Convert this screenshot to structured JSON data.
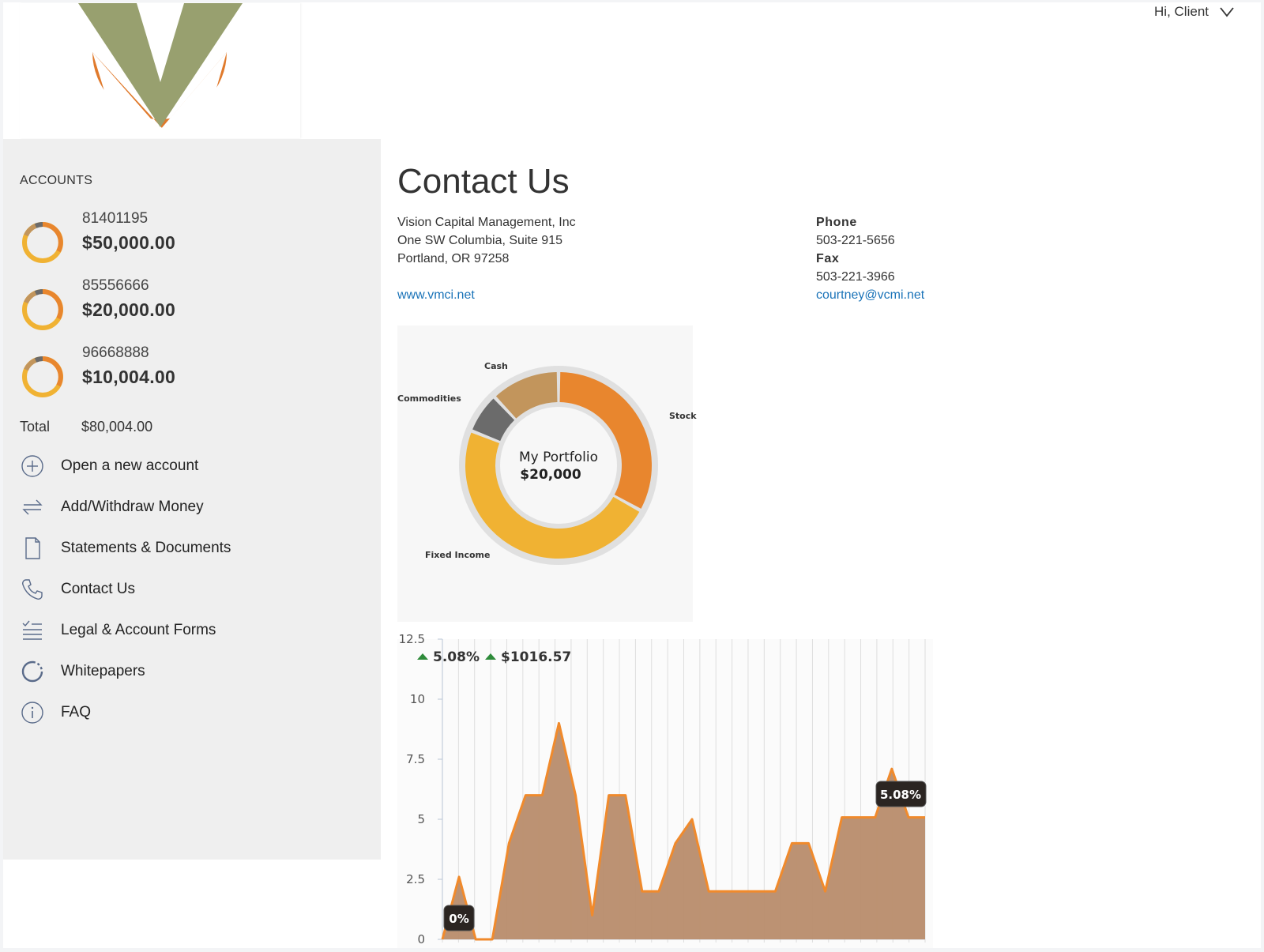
{
  "header": {
    "greeting": "Hi, Client",
    "colors": {
      "logo_green": "#98a06f",
      "logo_orange": "#e07a2c"
    }
  },
  "sidebar": {
    "heading": "ACCOUNTS",
    "accounts": [
      {
        "number": "81401195",
        "balance": "$50,000.00"
      },
      {
        "number": "85556666",
        "balance": "$20,000.00"
      },
      {
        "number": "96668888",
        "balance": "$10,004.00"
      }
    ],
    "total_label": "Total",
    "total_value": "$80,004.00",
    "nav": [
      {
        "label": "Open a new account",
        "icon": "plus-circle-icon"
      },
      {
        "label": "Add/Withdraw Money",
        "icon": "transfer-arrows-icon"
      },
      {
        "label": "Statements & Documents",
        "icon": "document-icon"
      },
      {
        "label": "Contact Us",
        "icon": "phone-icon"
      },
      {
        "label": "Legal & Account Forms",
        "icon": "checklist-icon"
      },
      {
        "label": "Whitepapers",
        "icon": "circle-dots-icon"
      },
      {
        "label": "FAQ",
        "icon": "info-icon"
      }
    ]
  },
  "main": {
    "title": "Contact Us",
    "company": "Vision Capital Management, Inc",
    "address1": "One SW Columbia, Suite 915",
    "address2": "Portland, OR 97258",
    "website": "www.vmci.net",
    "phone_label": "Phone",
    "phone": "503-221-5656",
    "fax_label": "Fax",
    "fax": "503-221-3966",
    "email": "courtney@vcmi.net"
  },
  "chart_data": [
    {
      "type": "pie",
      "center_title": "My Portfolio",
      "center_value": "$20,000",
      "categories": [
        "Stock",
        "Fixed Income",
        "Commodities",
        "Cash"
      ],
      "values": [
        33,
        48,
        7,
        12
      ],
      "colors": [
        "#e8862e",
        "#f0b233",
        "#6b6b6b",
        "#c2955c"
      ]
    },
    {
      "type": "area",
      "ylim": [
        0,
        12.5
      ],
      "yticks": [
        "0",
        "2.5",
        "5",
        "7.5",
        "10",
        "12.5"
      ],
      "grid": true,
      "header_pct": "5.08%",
      "header_value": "$1016.57",
      "start_label": "0%",
      "end_label": "5.08%",
      "line_color": "#f08a2c",
      "fill_color": "#b88c6c",
      "values": [
        0,
        2.6,
        0,
        0,
        4,
        6,
        6,
        9,
        6,
        1,
        6,
        6,
        2,
        2,
        4,
        5,
        2,
        2,
        2,
        2,
        2,
        4,
        4,
        2,
        5.08,
        5.08,
        5.08,
        7.1,
        5.08,
        5.08
      ]
    }
  ]
}
